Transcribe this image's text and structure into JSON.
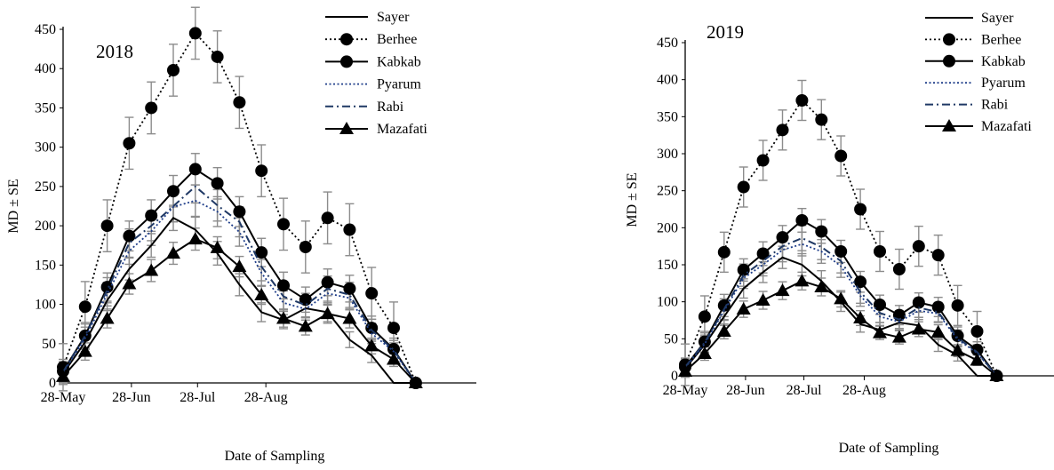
{
  "chart_data": [
    {
      "type": "line",
      "title": "2018",
      "xlabel": "Date of Sampling",
      "ylabel": "MD ± SE",
      "ylim": [
        0,
        450
      ],
      "yticks": [
        0,
        50,
        100,
        150,
        200,
        250,
        300,
        350,
        400,
        450
      ],
      "xticks": [
        "28-May",
        "28-Jun",
        "28-Jul",
        "28-Aug"
      ],
      "x_dates": [
        "28-May",
        "7-Jun",
        "17-Jun",
        "27-Jun",
        "7-Jul",
        "17-Jul",
        "27-Jul",
        "6-Aug",
        "16-Aug",
        "26-Aug",
        "5-Sep",
        "15-Sep",
        "25-Sep",
        "5-Oct",
        "15-Oct",
        "25-Oct",
        "4-Nov"
      ],
      "legend_position": "top-right",
      "grid": false,
      "error_bars": true,
      "series": [
        {
          "name": "Sayer",
          "style": "solid-line",
          "color": "#000000",
          "values": [
            12,
            52,
            105,
            145,
            175,
            210,
            195,
            165,
            125,
            90,
            80,
            95,
            90,
            55,
            35,
            0,
            0
          ],
          "error": [
            12,
            12,
            13,
            14,
            15,
            16,
            16,
            15,
            14,
            12,
            11,
            12,
            12,
            10,
            9,
            0,
            0
          ]
        },
        {
          "name": "Berhee",
          "style": "dotted-circle",
          "color": "#000000",
          "values": [
            20,
            97,
            200,
            305,
            350,
            398,
            445,
            415,
            357,
            270,
            202,
            173,
            210,
            195,
            114,
            70,
            0
          ],
          "error": [
            30,
            32,
            33,
            33,
            33,
            33,
            33,
            33,
            33,
            33,
            33,
            33,
            33,
            33,
            33,
            33,
            0
          ]
        },
        {
          "name": "Kabkab",
          "style": "solid-circle",
          "color": "#000000",
          "values": [
            15,
            60,
            122,
            187,
            213,
            244,
            272,
            254,
            218,
            166,
            124,
            106,
            128,
            120,
            70,
            43,
            0
          ],
          "error": [
            15,
            17,
            18,
            19,
            20,
            20,
            20,
            20,
            19,
            18,
            17,
            16,
            17,
            17,
            15,
            14,
            0
          ]
        },
        {
          "name": "Pyarum",
          "style": "dotted-line",
          "color": "#1f3e8a",
          "values": [
            13,
            57,
            113,
            168,
            193,
            224,
            232,
            218,
            192,
            140,
            102,
            94,
            114,
            108,
            63,
            40,
            0
          ],
          "error": [
            12,
            14,
            15,
            17,
            18,
            19,
            20,
            19,
            18,
            17,
            15,
            14,
            15,
            15,
            13,
            11,
            0
          ]
        },
        {
          "name": "Rabi",
          "style": "dashdot-line",
          "color": "#1f3864",
          "values": [
            14,
            60,
            118,
            178,
            200,
            225,
            250,
            226,
            205,
            148,
            110,
            99,
            120,
            112,
            67,
            42,
            0
          ],
          "error": [
            13,
            15,
            16,
            18,
            19,
            20,
            21,
            20,
            19,
            18,
            16,
            15,
            16,
            16,
            14,
            12,
            0
          ]
        },
        {
          "name": "Mazafati",
          "style": "solid-triangle",
          "color": "#000000",
          "values": [
            8,
            40,
            82,
            126,
            143,
            165,
            183,
            172,
            148,
            112,
            82,
            72,
            88,
            82,
            47,
            30,
            0
          ],
          "error": [
            10,
            11,
            12,
            13,
            14,
            14,
            14,
            14,
            13,
            12,
            11,
            11,
            12,
            12,
            10,
            9,
            0
          ]
        }
      ]
    },
    {
      "type": "line",
      "title": "2019",
      "xlabel": "Date of Sampling",
      "ylabel": "MD ± SE",
      "ylim": [
        0,
        450
      ],
      "yticks": [
        0,
        50,
        100,
        150,
        200,
        250,
        300,
        350,
        400,
        450
      ],
      "xticks": [
        "28-May",
        "28-Jun",
        "28-Jul",
        "28-Aug"
      ],
      "x_dates": [
        "28-May",
        "7-Jun",
        "17-Jun",
        "27-Jun",
        "7-Jul",
        "17-Jul",
        "27-Jul",
        "6-Aug",
        "16-Aug",
        "26-Aug",
        "5-Sep",
        "15-Sep",
        "25-Sep",
        "5-Oct",
        "15-Oct",
        "25-Oct",
        "4-Nov"
      ],
      "legend_position": "top-right",
      "grid": false,
      "error_bars": true,
      "series": [
        {
          "name": "Sayer",
          "style": "solid-line",
          "color": "#000000",
          "values": [
            10,
            42,
            80,
            118,
            140,
            160,
            150,
            128,
            100,
            70,
            62,
            72,
            68,
            42,
            28,
            0,
            0
          ],
          "error": [
            10,
            11,
            12,
            13,
            14,
            15,
            15,
            14,
            13,
            11,
            10,
            11,
            11,
            9,
            8,
            0,
            0
          ]
        },
        {
          "name": "Berhee",
          "style": "dotted-circle",
          "color": "#000000",
          "values": [
            15,
            80,
            167,
            255,
            291,
            332,
            372,
            346,
            297,
            225,
            168,
            144,
            175,
            163,
            95,
            60,
            0
          ],
          "error": [
            28,
            28,
            27,
            27,
            27,
            27,
            27,
            27,
            27,
            27,
            27,
            27,
            27,
            27,
            27,
            27,
            0
          ]
        },
        {
          "name": "Kabkab",
          "style": "solid-circle",
          "color": "#000000",
          "values": [
            12,
            46,
            95,
            143,
            165,
            187,
            210,
            195,
            168,
            127,
            96,
            82,
            99,
            93,
            54,
            35,
            0
          ],
          "error": [
            12,
            14,
            15,
            15,
            16,
            16,
            16,
            16,
            15,
            14,
            13,
            13,
            13,
            13,
            12,
            11,
            0
          ]
        },
        {
          "name": "Pyarum",
          "style": "dotted-line",
          "color": "#1f3e8a",
          "values": [
            11,
            43,
            88,
            132,
            150,
            170,
            178,
            168,
            148,
            108,
            80,
            73,
            88,
            84,
            49,
            31,
            0
          ],
          "error": [
            10,
            12,
            13,
            14,
            15,
            16,
            16,
            16,
            15,
            14,
            12,
            11,
            12,
            12,
            10,
            9,
            0
          ]
        },
        {
          "name": "Rabi",
          "style": "dashdot-line",
          "color": "#1f3864",
          "values": [
            12,
            45,
            90,
            136,
            155,
            175,
            186,
            174,
            155,
            113,
            85,
            76,
            92,
            86,
            51,
            32,
            0
          ],
          "error": [
            11,
            13,
            14,
            15,
            16,
            17,
            17,
            17,
            16,
            15,
            13,
            12,
            13,
            13,
            11,
            10,
            0
          ]
        },
        {
          "name": "Mazafati",
          "style": "solid-triangle",
          "color": "#000000",
          "values": [
            6,
            30,
            60,
            90,
            102,
            115,
            128,
            120,
            104,
            78,
            58,
            52,
            63,
            59,
            34,
            21,
            0
          ],
          "error": [
            8,
            9,
            10,
            11,
            12,
            12,
            12,
            12,
            11,
            10,
            9,
            9,
            10,
            10,
            8,
            7,
            0
          ]
        }
      ]
    }
  ]
}
